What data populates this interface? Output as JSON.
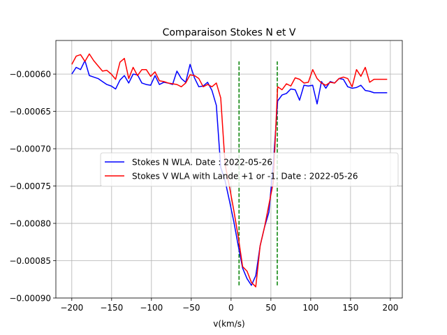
{
  "chart_data": {
    "type": "line",
    "title": "Comparaison Stokes N et V",
    "xlabel": "v(km/s)",
    "ylabel": "",
    "xlim": [
      -220,
      215
    ],
    "ylim": [
      -0.0009,
      -0.000555
    ],
    "x_ticks": [
      -200,
      -150,
      -100,
      -50,
      0,
      50,
      100,
      150,
      200
    ],
    "x_tick_labels": [
      "−200",
      "−150",
      "−100",
      "−50",
      "0",
      "50",
      "100",
      "150",
      "200"
    ],
    "y_ticks": [
      -0.0009,
      -0.00085,
      -0.0008,
      -0.00075,
      -0.0007,
      -0.00065,
      -0.0006
    ],
    "y_tick_labels": [
      "−0.00090",
      "−0.00085",
      "−0.00080",
      "−0.00075",
      "−0.00070",
      "−0.00065",
      "−0.00060"
    ],
    "grid": true,
    "legend_position": "center-right",
    "series": [
      {
        "name": "Stokes N WLA. Date : 2022-05-26",
        "color": "#0000ff",
        "x": [
          -200,
          -194.5,
          -189,
          -183.5,
          -178,
          -172.5,
          -167,
          -161.5,
          -156,
          -150.5,
          -145,
          -139.5,
          -134,
          -128.5,
          -123,
          -117.5,
          -112,
          -106.5,
          -101,
          -95.5,
          -90,
          -84.5,
          -79,
          -73.5,
          -68,
          -62.5,
          -57,
          -51.5,
          -46,
          -40.5,
          -35,
          -29.5,
          -24,
          -18.5,
          -13,
          -7.5,
          -2,
          3.5,
          9,
          14.5,
          20,
          25.5,
          31,
          36.5,
          42,
          47.5,
          53,
          58.5,
          64,
          69.5,
          75,
          80.5,
          86,
          91.5,
          97,
          102.5,
          108,
          113.5,
          119,
          124.5,
          130,
          135.5,
          141,
          146.5,
          152,
          157.5,
          163,
          168.5,
          174,
          179.5,
          185,
          190.5,
          196
        ],
        "y": [
          -0.0006,
          -0.000591,
          -0.000594,
          -0.000582,
          -0.000602,
          -0.000604,
          -0.000606,
          -0.00061,
          -0.000614,
          -0.000616,
          -0.00062,
          -0.000608,
          -0.000602,
          -0.000612,
          -0.0006,
          -0.000601,
          -0.000612,
          -0.000614,
          -0.000615,
          -0.000602,
          -0.000614,
          -0.000611,
          -0.000612,
          -0.000614,
          -0.000596,
          -0.000606,
          -0.000611,
          -0.000587,
          -0.000605,
          -0.000617,
          -0.000616,
          -0.000611,
          -0.000622,
          -0.000642,
          -0.000725,
          -0.000743,
          -0.00077,
          -0.000798,
          -0.00083,
          -0.00086,
          -0.000874,
          -0.000883,
          -0.00087,
          -0.00083,
          -0.000805,
          -0.000785,
          -0.00072,
          -0.000636,
          -0.000628,
          -0.000626,
          -0.00062,
          -0.000621,
          -0.000635,
          -0.000615,
          -0.000616,
          -0.000615,
          -0.00064,
          -0.00061,
          -0.000619,
          -0.00061,
          -0.000612,
          -0.000606,
          -0.000607,
          -0.000617,
          -0.000619,
          -0.000618,
          -0.000615,
          -0.000622,
          -0.000623,
          -0.000625,
          -0.000625,
          -0.000625,
          -0.000625
        ]
      },
      {
        "name": "Stokes V WLA with Lande +1 or -1. Date : 2022-05-26",
        "color": "#ff0000",
        "x": [
          -200,
          -194.5,
          -189,
          -183.5,
          -178,
          -172.5,
          -167,
          -161.5,
          -156,
          -150.5,
          -145,
          -139.5,
          -134,
          -128.5,
          -123,
          -117.5,
          -112,
          -106.5,
          -101,
          -95.5,
          -90,
          -84.5,
          -79,
          -73.5,
          -68,
          -62.5,
          -57,
          -51.5,
          -46,
          -40.5,
          -35,
          -29.5,
          -24,
          -18.5,
          -13,
          -7.5,
          -2,
          3.5,
          9,
          14.5,
          20,
          25.5,
          31,
          36.5,
          42,
          47.5,
          53,
          58.5,
          64,
          69.5,
          75,
          80.5,
          86,
          91.5,
          97,
          102.5,
          108,
          113.5,
          119,
          124.5,
          130,
          135.5,
          141,
          146.5,
          152,
          157.5,
          163,
          168.5,
          174,
          179.5,
          185,
          190.5,
          196
        ],
        "y": [
          -0.000587,
          -0.000576,
          -0.000574,
          -0.000583,
          -0.000573,
          -0.000582,
          -0.000589,
          -0.000596,
          -0.000595,
          -0.0006,
          -0.000607,
          -0.000584,
          -0.000579,
          -0.000606,
          -0.000591,
          -0.000602,
          -0.000594,
          -0.000594,
          -0.000603,
          -0.000597,
          -0.000609,
          -0.00061,
          -0.000612,
          -0.000613,
          -0.000614,
          -0.000617,
          -0.000612,
          -0.000601,
          -0.000602,
          -0.000606,
          -0.000617,
          -0.000614,
          -0.000617,
          -0.000612,
          -0.000632,
          -0.000721,
          -0.000751,
          -0.000783,
          -0.000818,
          -0.000858,
          -0.000864,
          -0.000879,
          -0.000885,
          -0.00083,
          -0.000805,
          -0.000775,
          -0.000745,
          -0.000617,
          -0.000621,
          -0.000613,
          -0.000616,
          -0.000605,
          -0.000607,
          -0.000612,
          -0.000611,
          -0.000594,
          -0.000606,
          -0.000612,
          -0.000615,
          -0.000611,
          -0.000612,
          -0.000606,
          -0.000604,
          -0.000606,
          -0.000617,
          -0.000594,
          -0.000603,
          -0.000591,
          -0.000611,
          -0.000607,
          -0.000607,
          -0.000607,
          -0.000607
        ]
      }
    ],
    "vertical_markers": [
      {
        "x": 10,
        "y_range": [
          -0.000883,
          -0.000583
        ],
        "color": "#008000",
        "style": "dashed"
      },
      {
        "x": 58,
        "y_range": [
          -0.000883,
          -0.000583
        ],
        "color": "#008000",
        "style": "dashed"
      }
    ]
  }
}
